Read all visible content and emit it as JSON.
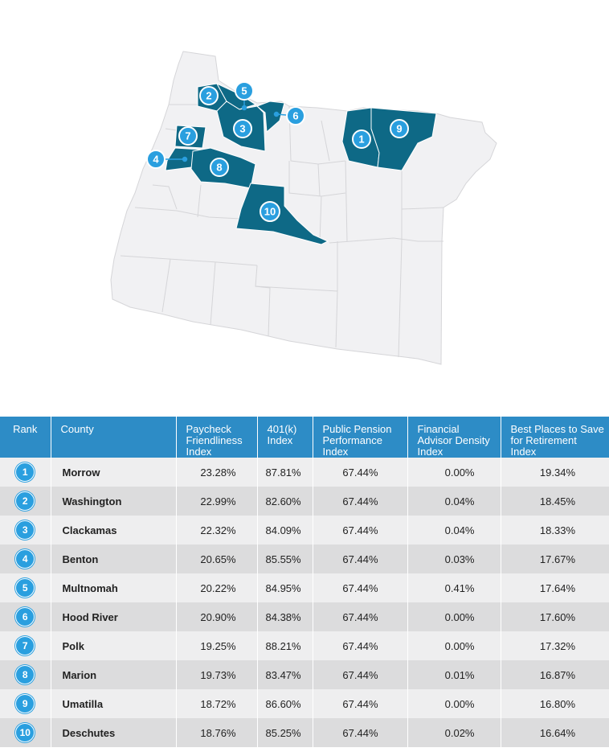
{
  "colors": {
    "state_fill": "#f1f1f3",
    "state_stroke": "#d5d5d8",
    "highlight_fill": "#0e6986",
    "marker_fill": "#2a9fdf",
    "header_bg": "#2d8cc6",
    "row_odd": "#eeeeef",
    "row_even": "#dcdcdd"
  },
  "map": {
    "markers": [
      {
        "label": "1",
        "county": "Morrow"
      },
      {
        "label": "2",
        "county": "Washington"
      },
      {
        "label": "3",
        "county": "Clackamas"
      },
      {
        "label": "4",
        "county": "Benton"
      },
      {
        "label": "5",
        "county": "Multnomah"
      },
      {
        "label": "6",
        "county": "Hood River"
      },
      {
        "label": "7",
        "county": "Polk"
      },
      {
        "label": "8",
        "county": "Marion"
      },
      {
        "label": "9",
        "county": "Umatilla"
      },
      {
        "label": "10",
        "county": "Deschutes"
      }
    ]
  },
  "table": {
    "headers": [
      "Rank",
      "County",
      "Paycheck Friendliness Index",
      "401(k) Index",
      "Public Pension Performance Index",
      "Financial Advisor Density Index",
      "Best Places to Save for Retirement Index"
    ],
    "rows": [
      {
        "rank": "1",
        "county": "Morrow",
        "paycheck": "23.28%",
        "k401": "87.81%",
        "pension": "67.44%",
        "advisor": "0.00%",
        "best": "19.34%"
      },
      {
        "rank": "2",
        "county": "Washington",
        "paycheck": "22.99%",
        "k401": "82.60%",
        "pension": "67.44%",
        "advisor": "0.04%",
        "best": "18.45%"
      },
      {
        "rank": "3",
        "county": "Clackamas",
        "paycheck": "22.32%",
        "k401": "84.09%",
        "pension": "67.44%",
        "advisor": "0.04%",
        "best": "18.33%"
      },
      {
        "rank": "4",
        "county": "Benton",
        "paycheck": "20.65%",
        "k401": "85.55%",
        "pension": "67.44%",
        "advisor": "0.03%",
        "best": "17.67%"
      },
      {
        "rank": "5",
        "county": "Multnomah",
        "paycheck": "20.22%",
        "k401": "84.95%",
        "pension": "67.44%",
        "advisor": "0.41%",
        "best": "17.64%"
      },
      {
        "rank": "6",
        "county": "Hood River",
        "paycheck": "20.90%",
        "k401": "84.38%",
        "pension": "67.44%",
        "advisor": "0.00%",
        "best": "17.60%"
      },
      {
        "rank": "7",
        "county": "Polk",
        "paycheck": "19.25%",
        "k401": "88.21%",
        "pension": "67.44%",
        "advisor": "0.00%",
        "best": "17.32%"
      },
      {
        "rank": "8",
        "county": "Marion",
        "paycheck": "19.73%",
        "k401": "83.47%",
        "pension": "67.44%",
        "advisor": "0.01%",
        "best": "16.87%"
      },
      {
        "rank": "9",
        "county": "Umatilla",
        "paycheck": "18.72%",
        "k401": "86.60%",
        "pension": "67.44%",
        "advisor": "0.00%",
        "best": "16.80%"
      },
      {
        "rank": "10",
        "county": "Deschutes",
        "paycheck": "18.76%",
        "k401": "85.25%",
        "pension": "67.44%",
        "advisor": "0.02%",
        "best": "16.64%"
      }
    ]
  }
}
